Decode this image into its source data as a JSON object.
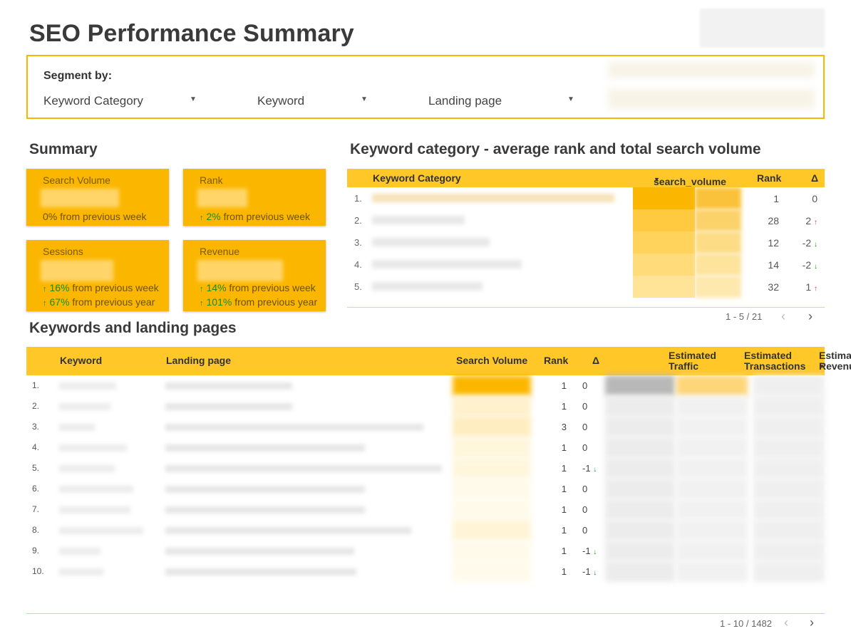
{
  "page": {
    "title": "SEO Performance Summary"
  },
  "segment": {
    "label": "Segment by:",
    "dropdowns": [
      {
        "label": "Keyword Category"
      },
      {
        "label": "Keyword"
      },
      {
        "label": "Landing page"
      }
    ]
  },
  "summary": {
    "title": "Summary",
    "cards": [
      {
        "label": "Search Volume",
        "comparisons": [
          {
            "arrow": "",
            "pct": "0%",
            "text": " from previous week"
          }
        ]
      },
      {
        "label": "Rank",
        "comparisons": [
          {
            "arrow": "↑",
            "pct": "2%",
            "text": " from previous week"
          }
        ]
      },
      {
        "label": "Sessions",
        "comparisons": [
          {
            "arrow": "↑",
            "pct": "16%",
            "text": " from previous week"
          },
          {
            "arrow": "↑",
            "pct": "67%",
            "text": " from previous year"
          }
        ]
      },
      {
        "label": "Revenue",
        "comparisons": [
          {
            "arrow": "↑",
            "pct": "14%",
            "text": " from previous week"
          },
          {
            "arrow": "↑",
            "pct": "101%",
            "text": " from previous year"
          }
        ]
      }
    ]
  },
  "category_table": {
    "title": "Keyword category - average rank and total search volume",
    "headers": {
      "category": "Keyword Category",
      "volume": "search_volume",
      "rank": "Rank",
      "delta": "Δ"
    },
    "rows": [
      {
        "idx": "1.",
        "rank": "1",
        "delta": "0",
        "dir": ""
      },
      {
        "idx": "2.",
        "rank": "28",
        "delta": "2",
        "dir": "↑"
      },
      {
        "idx": "3.",
        "rank": "12",
        "delta": "-2",
        "dir": "↓"
      },
      {
        "idx": "4.",
        "rank": "14",
        "delta": "-2",
        "dir": "↓"
      },
      {
        "idx": "5.",
        "rank": "32",
        "delta": "1",
        "dir": "↑"
      }
    ],
    "pager": "1 - 5 / 21"
  },
  "keywords_table": {
    "title": "Keywords and landing pages",
    "headers": {
      "keyword": "Keyword",
      "landing": "Landing page",
      "volume": "Search Volume",
      "rank": "Rank",
      "delta": "Δ",
      "traffic_1": "Estimated",
      "traffic_2": "Traffic",
      "trans_1": "Estimated",
      "trans_2": "Transactions",
      "revenue_1": "Estimated",
      "revenue_2": "Revenue"
    },
    "rows": [
      {
        "idx": "1.",
        "rank": "1",
        "delta": "0",
        "dir": ""
      },
      {
        "idx": "2.",
        "rank": "1",
        "delta": "0",
        "dir": ""
      },
      {
        "idx": "3.",
        "rank": "3",
        "delta": "0",
        "dir": ""
      },
      {
        "idx": "4.",
        "rank": "1",
        "delta": "0",
        "dir": ""
      },
      {
        "idx": "5.",
        "rank": "1",
        "delta": "-1",
        "dir": "↓"
      },
      {
        "idx": "6.",
        "rank": "1",
        "delta": "0",
        "dir": ""
      },
      {
        "idx": "7.",
        "rank": "1",
        "delta": "0",
        "dir": ""
      },
      {
        "idx": "8.",
        "rank": "1",
        "delta": "0",
        "dir": ""
      },
      {
        "idx": "9.",
        "rank": "1",
        "delta": "-1",
        "dir": "↓"
      },
      {
        "idx": "10.",
        "rank": "1",
        "delta": "-1",
        "dir": "↓"
      }
    ],
    "pager": "1 - 10 / 1482"
  },
  "icons": {
    "prev": "chevron-left-icon",
    "next": "chevron-right-icon",
    "dropdown": "caret-down-icon",
    "sort": "sort-desc-icon"
  },
  "colors": {
    "accent": "#fbb700",
    "header": "#ffc727",
    "up": "#1a8c1a",
    "down_red": "#d33333",
    "border": "#f5b800"
  }
}
